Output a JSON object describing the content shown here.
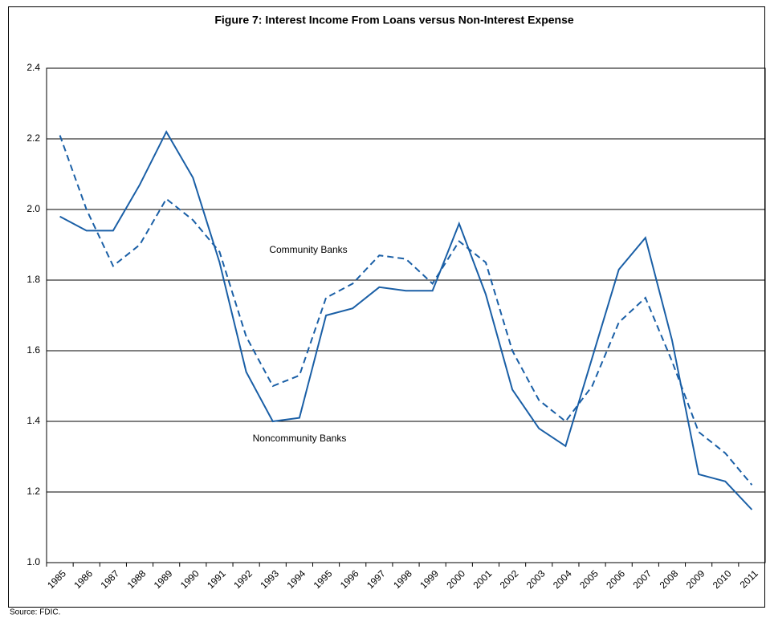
{
  "chart_data": {
    "type": "line",
    "title": "Figure 7: Interest Income From Loans versus Non-Interest Expense",
    "source": "Source: FDIC.",
    "categories": [
      "1985",
      "1986",
      "1987",
      "1988",
      "1989",
      "1990",
      "1991",
      "1992",
      "1993",
      "1994",
      "1995",
      "1996",
      "1997",
      "1998",
      "1999",
      "2000",
      "2001",
      "2002",
      "2003",
      "2004",
      "2005",
      "2006",
      "2007",
      "2008",
      "2009",
      "2010",
      "2011"
    ],
    "series": [
      {
        "name": "Community Banks",
        "color": "#1a5fa6",
        "dashed": true,
        "values": [
          2.21,
          2.0,
          1.84,
          1.9,
          2.03,
          1.97,
          1.88,
          1.64,
          1.5,
          1.53,
          1.75,
          1.79,
          1.87,
          1.86,
          1.79,
          1.91,
          1.85,
          1.6,
          1.46,
          1.4,
          1.5,
          1.68,
          1.75,
          1.57,
          1.37,
          1.31,
          1.22
        ]
      },
      {
        "name": "Noncommunity Banks",
        "color": "#1a5fa6",
        "dashed": false,
        "values": [
          1.98,
          1.94,
          1.94,
          2.07,
          2.22,
          2.09,
          1.85,
          1.54,
          1.4,
          1.41,
          1.7,
          1.72,
          1.78,
          1.77,
          1.77,
          1.96,
          1.76,
          1.49,
          1.38,
          1.33,
          1.58,
          1.83,
          1.92,
          1.63,
          1.25,
          1.23,
          1.15
        ]
      }
    ],
    "ylim": [
      1.0,
      2.4
    ],
    "yticks": [
      {
        "value": 1.0,
        "label": "1.0"
      },
      1.2,
      1.4,
      1.6,
      1.8,
      {
        "value": 2.0,
        "label": "2.0"
      },
      2.2,
      2.4
    ],
    "grid": true
  }
}
